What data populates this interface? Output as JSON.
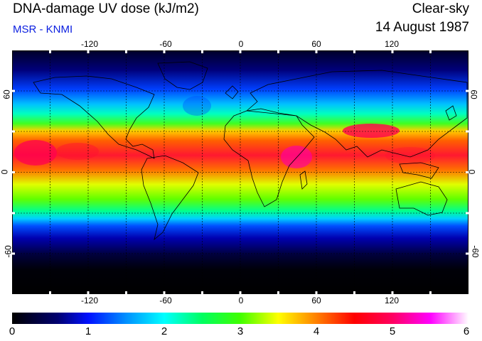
{
  "header": {
    "title": "DNA-damage UV dose (kJ/m2)",
    "subtitle": "MSR - KNMI",
    "condition": "Clear-sky",
    "date": "14 August 1987"
  },
  "map": {
    "projection": "equirectangular",
    "lon_range": [
      -180,
      180
    ],
    "lat_range": [
      -90,
      90
    ],
    "grid_lon_step": 30,
    "grid_lat_step": 30,
    "lon_ticks": [
      {
        "value": -120,
        "label": "-120"
      },
      {
        "value": -60,
        "label": "-60"
      },
      {
        "value": 0,
        "label": "0"
      },
      {
        "value": 60,
        "label": "60"
      },
      {
        "value": 120,
        "label": "120"
      }
    ],
    "lat_ticks": [
      {
        "value": 60,
        "label": "60"
      },
      {
        "value": 0,
        "label": "0"
      },
      {
        "value": -60,
        "label": "-60"
      }
    ]
  },
  "colorbar": {
    "min": 0,
    "max": 6,
    "labels": [
      "0",
      "1",
      "2",
      "3",
      "4",
      "5",
      "6"
    ],
    "stops": [
      {
        "value": 0.0,
        "color": "#000000"
      },
      {
        "value": 0.6,
        "color": "#000070"
      },
      {
        "value": 1.0,
        "color": "#0010ff"
      },
      {
        "value": 1.5,
        "color": "#0090ff"
      },
      {
        "value": 2.0,
        "color": "#00ffff"
      },
      {
        "value": 2.5,
        "color": "#00ff60"
      },
      {
        "value": 3.0,
        "color": "#40ff00"
      },
      {
        "value": 3.5,
        "color": "#ffff00"
      },
      {
        "value": 4.0,
        "color": "#ff8000"
      },
      {
        "value": 4.5,
        "color": "#ff0000"
      },
      {
        "value": 5.0,
        "color": "#ff0060"
      },
      {
        "value": 5.5,
        "color": "#ff00ff"
      },
      {
        "value": 6.0,
        "color": "#ffffff"
      }
    ]
  }
}
